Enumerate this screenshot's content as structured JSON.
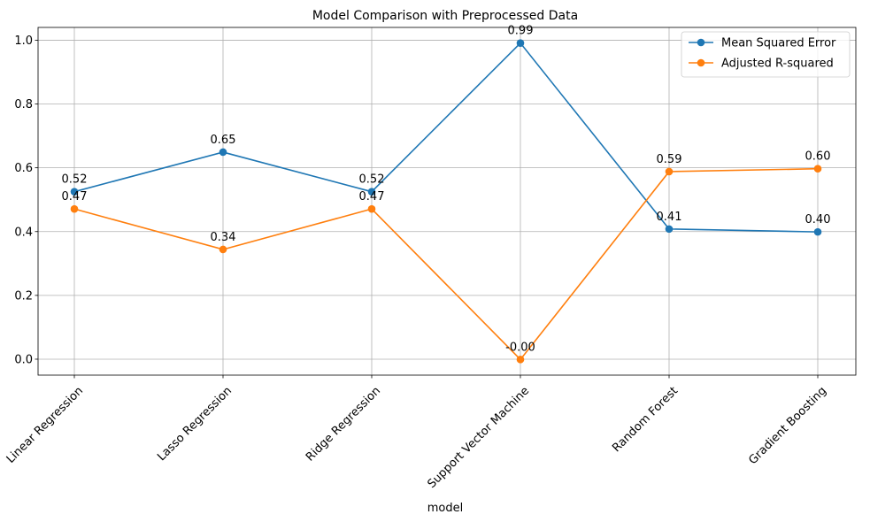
{
  "chart_data": {
    "type": "line",
    "title": "Model Comparison with Preprocessed Data",
    "xlabel": "model",
    "ylabel": "",
    "categories": [
      "Linear Regression",
      "Lasso Regression",
      "Ridge Regression",
      "Support Vector Machine",
      "Random Forest",
      "Gradient Boosting"
    ],
    "ylim": [
      -0.05,
      1.04
    ],
    "yticks": [
      0.0,
      0.2,
      0.4,
      0.6,
      0.8,
      1.0
    ],
    "ytick_labels": [
      "0.0",
      "0.2",
      "0.4",
      "0.6",
      "0.8",
      "1.0"
    ],
    "grid": true,
    "legend_position": "top-right",
    "series": [
      {
        "name": "Mean Squared Error",
        "color": "#1f77b4",
        "values": [
          0.525,
          0.649,
          0.525,
          0.991,
          0.408,
          0.399
        ],
        "labels": [
          "0.52",
          "0.65",
          "0.52",
          "0.99",
          "0.41",
          "0.40"
        ]
      },
      {
        "name": "Adjusted R-squared",
        "color": "#ff7f0e",
        "values": [
          0.471,
          0.344,
          0.471,
          -0.001,
          0.588,
          0.597
        ],
        "labels": [
          "0.47",
          "0.34",
          "0.47",
          "-0.00",
          "0.59",
          "0.60"
        ]
      }
    ]
  }
}
